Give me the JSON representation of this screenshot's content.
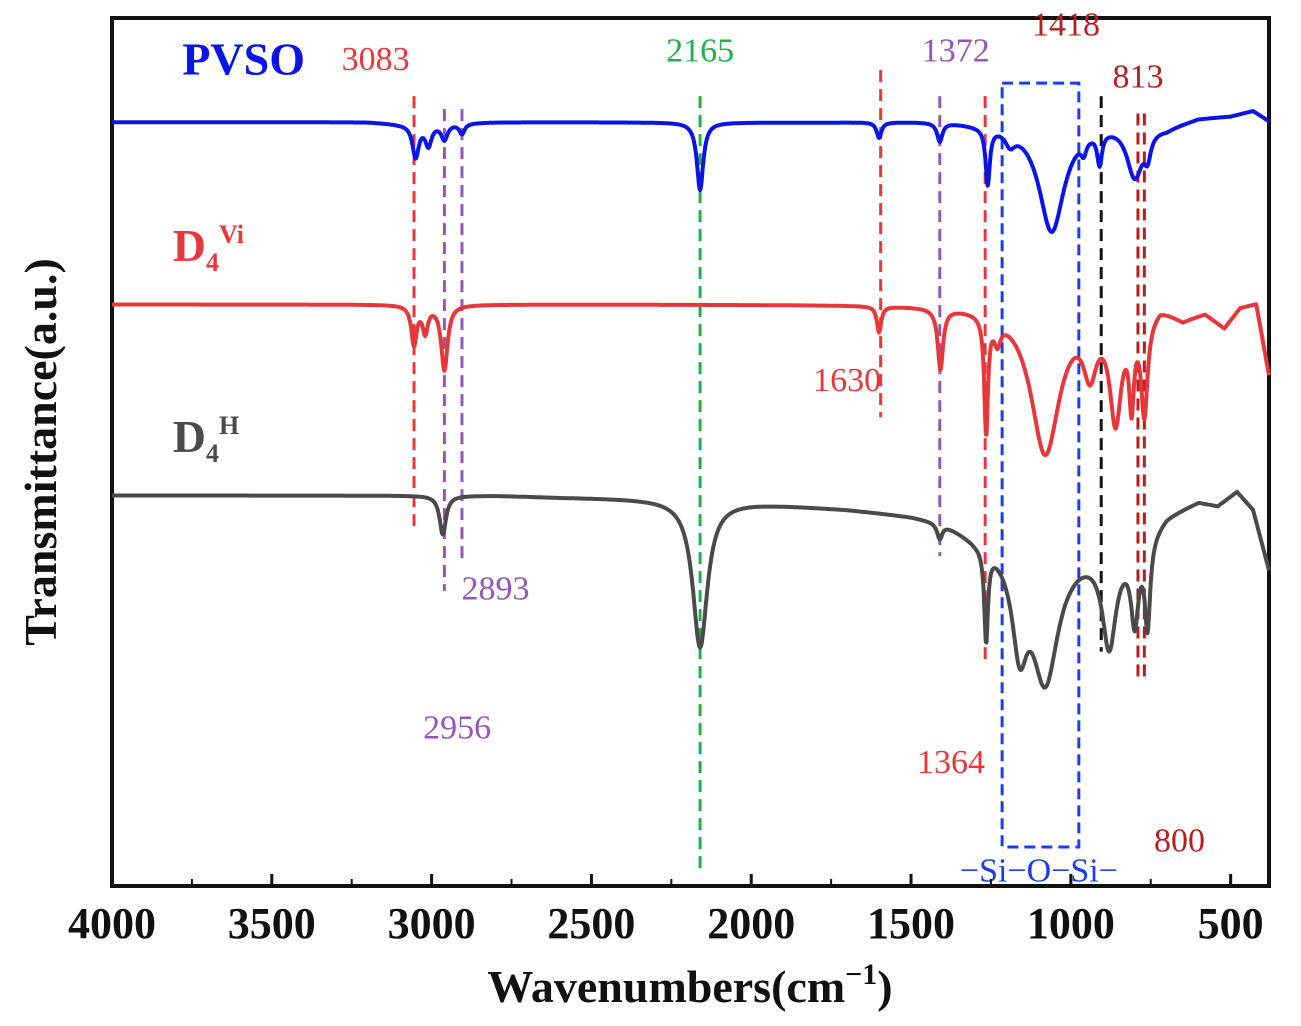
{
  "chart_data": {
    "type": "line",
    "title": "",
    "xlabel_main": "Wavenumbers(cm",
    "xlabel_sup": "−1",
    "xlabel_tail": ")",
    "ylabel": "Transmittance(a.u.)",
    "xlim": [
      4000,
      380
    ],
    "x_reversed": true,
    "xticks": [
      4000,
      3500,
      3000,
      2500,
      2000,
      1500,
      1000,
      500
    ],
    "xtick_labels": [
      "4000",
      "3500",
      "3000",
      "2500",
      "2000",
      "1500",
      "1000",
      "500"
    ],
    "ylim": [
      0,
      100
    ],
    "series": [
      {
        "key": "pvso",
        "name": "PVSO",
        "sup": "",
        "color": "#0a14e6",
        "baseline": 88,
        "wave": [
          [
            4000,
            88
          ],
          [
            3600,
            88
          ],
          [
            3200,
            88
          ],
          [
            3100,
            87.8
          ],
          [
            2800,
            88
          ],
          [
            2400,
            88
          ],
          [
            1800,
            88
          ],
          [
            1400,
            88.2
          ],
          [
            1300,
            88
          ],
          [
            1000,
            88
          ],
          [
            800,
            88.3
          ],
          [
            700,
            87.6
          ],
          [
            600,
            88.6
          ],
          [
            500,
            88.8
          ],
          [
            430,
            89.4
          ],
          [
            380,
            88.2
          ]
        ],
        "peaks": [
          {
            "x": 3050,
            "depth": 3.8,
            "w": 12
          },
          {
            "x": 3010,
            "depth": 2.4,
            "w": 12
          },
          {
            "x": 2960,
            "depth": 1.8,
            "w": 12
          },
          {
            "x": 2905,
            "depth": 1.2,
            "w": 10
          },
          {
            "x": 2160,
            "depth": 7.8,
            "w": 12
          },
          {
            "x": 1600,
            "depth": 1.8,
            "w": 9
          },
          {
            "x": 1410,
            "depth": 2.2,
            "w": 10
          },
          {
            "x": 1260,
            "depth": 6.5,
            "w": 8
          },
          {
            "x": 1190,
            "depth": 1.5,
            "w": 18
          },
          {
            "x": 1060,
            "depth": 12.5,
            "w": 48
          },
          {
            "x": 960,
            "depth": 1.5,
            "w": 10
          },
          {
            "x": 910,
            "depth": 3.6,
            "w": 9
          },
          {
            "x": 800,
            "depth": 6.2,
            "w": 30
          },
          {
            "x": 760,
            "depth": 2.5,
            "w": 12
          }
        ]
      },
      {
        "key": "d4vi",
        "name": "D",
        "sub": "4",
        "sup": "Vi",
        "color": "#e8373a",
        "baseline": 67,
        "wave": [
          [
            4000,
            67
          ],
          [
            3500,
            67
          ],
          [
            3200,
            67
          ],
          [
            2800,
            67
          ],
          [
            2400,
            67
          ],
          [
            2000,
            67
          ],
          [
            1600,
            67
          ],
          [
            1450,
            67
          ],
          [
            1200,
            67
          ],
          [
            1000,
            67
          ],
          [
            760,
            66.5
          ],
          [
            720,
            67.2
          ],
          [
            650,
            65.5
          ],
          [
            580,
            66.2
          ],
          [
            520,
            64.5
          ],
          [
            470,
            66.8
          ],
          [
            420,
            67.2
          ],
          [
            380,
            59
          ]
        ],
        "peaks": [
          {
            "x": 3055,
            "depth": 4.5,
            "w": 10
          },
          {
            "x": 3020,
            "depth": 3,
            "w": 10
          },
          {
            "x": 2960,
            "depth": 7.5,
            "w": 12
          },
          {
            "x": 1600,
            "depth": 3,
            "w": 8
          },
          {
            "x": 1408,
            "depth": 7,
            "w": 10
          },
          {
            "x": 1265,
            "depth": 13.5,
            "w": 7
          },
          {
            "x": 1230,
            "depth": 2.5,
            "w": 12
          },
          {
            "x": 1080,
            "depth": 17,
            "w": 55
          },
          {
            "x": 940,
            "depth": 6,
            "w": 25
          },
          {
            "x": 860,
            "depth": 12,
            "w": 22
          },
          {
            "x": 810,
            "depth": 9,
            "w": 9
          },
          {
            "x": 770,
            "depth": 11,
            "w": 12
          }
        ]
      },
      {
        "key": "d4h",
        "name": "D",
        "sub": "4",
        "sup": "H",
        "color": "#4a4a4a",
        "baseline": 45,
        "wave": [
          [
            4000,
            45
          ],
          [
            3500,
            45
          ],
          [
            3200,
            45
          ],
          [
            3000,
            45
          ],
          [
            2800,
            45
          ],
          [
            2600,
            44.8
          ],
          [
            2400,
            44.7
          ],
          [
            2200,
            44.6
          ],
          [
            2000,
            44.2
          ],
          [
            1700,
            43.5
          ],
          [
            1500,
            42.8
          ],
          [
            1400,
            42.2
          ],
          [
            1300,
            40.5
          ],
          [
            1200,
            39.5
          ],
          [
            1000,
            39
          ],
          [
            800,
            39.5
          ],
          [
            700,
            43
          ],
          [
            600,
            44.5
          ],
          [
            540,
            44
          ],
          [
            480,
            45.6
          ],
          [
            430,
            43.5
          ],
          [
            380,
            36.5
          ]
        ],
        "peaks": [
          {
            "x": 2965,
            "depth": 4.5,
            "w": 12
          },
          {
            "x": 2160,
            "depth": 17,
            "w": 28
          },
          {
            "x": 1410,
            "depth": 1.8,
            "w": 10
          },
          {
            "x": 1265,
            "depth": 10.5,
            "w": 7
          },
          {
            "x": 1160,
            "depth": 10,
            "w": 28
          },
          {
            "x": 1080,
            "depth": 15,
            "w": 50
          },
          {
            "x": 880,
            "depth": 11,
            "w": 26
          },
          {
            "x": 800,
            "depth": 8,
            "w": 14
          },
          {
            "x": 760,
            "depth": 10,
            "w": 10
          }
        ]
      }
    ],
    "reference_lines": [
      {
        "x": 3055,
        "y_top": 91,
        "y_bot": 41,
        "color": "#e8373a",
        "name": "ref-3083"
      },
      {
        "x": 2960,
        "y_top": 89.5,
        "y_bot": 34,
        "color": "#9457b7",
        "name": "ref-2956"
      },
      {
        "x": 2905,
        "y_top": 89.5,
        "y_bot": 37,
        "color": "#9457b7",
        "name": "ref-2893"
      },
      {
        "x": 2160,
        "y_top": 91,
        "y_bot": 1.5,
        "color": "#1fb04c",
        "name": "ref-2165"
      },
      {
        "x": 1595,
        "y_top": 94,
        "y_bot": 54,
        "color": "#e8373a",
        "name": "ref-1630"
      },
      {
        "x": 1410,
        "y_top": 91,
        "y_bot": 38,
        "color": "#9457b7",
        "name": "ref-1372"
      },
      {
        "x": 1268,
        "y_top": 91,
        "y_bot": 26,
        "color": "#e8373a",
        "name": "ref-1364"
      },
      {
        "x": 905,
        "y_top": 91,
        "y_bot": 27,
        "color": "#111111",
        "name": "ref-1418"
      },
      {
        "x": 790,
        "y_top": 89,
        "y_bot": 24,
        "color": "#b51f1f",
        "name": "ref-813"
      },
      {
        "x": 770,
        "y_top": 89,
        "y_bot": 24,
        "color": "#b51f1f",
        "name": "ref-800"
      }
    ],
    "si_box": {
      "x1": 1215,
      "x2": 975,
      "y_top": 92.5,
      "y_bot": 4.5,
      "color": "#1a3ee8"
    },
    "annotations": [
      {
        "text": "3083",
        "x": 3175,
        "y": 94,
        "color": "#e8373a",
        "name": "label-3083"
      },
      {
        "text": "2165",
        "x": 2160,
        "y": 95,
        "color": "#1fb04c",
        "name": "label-2165"
      },
      {
        "text": "1372",
        "x": 1360,
        "y": 95,
        "color": "#9457b7",
        "name": "label-1372"
      },
      {
        "text": "1418",
        "x": 1015,
        "y": 98,
        "color": "#b51f1f",
        "name": "label-1418"
      },
      {
        "text": "813",
        "x": 790,
        "y": 92,
        "color": "#b51f1f",
        "name": "label-813"
      },
      {
        "text": "1630",
        "x": 1700,
        "y": 57,
        "color": "#e8373a",
        "name": "label-1630"
      },
      {
        "text": "2893",
        "x": 2800,
        "y": 33,
        "color": "#9457b7",
        "name": "label-2893"
      },
      {
        "text": "2956",
        "x": 2920,
        "y": 17,
        "color": "#9457b7",
        "name": "label-2956"
      },
      {
        "text": "1364",
        "x": 1375,
        "y": 13,
        "color": "#e8373a",
        "name": "label-1364"
      },
      {
        "text": "800",
        "x": 660,
        "y": 4,
        "color": "#b51f1f",
        "name": "label-800"
      },
      {
        "text": "−Si−O−Si−",
        "x": 1100,
        "y": 0.5,
        "color": "#1a3ee8",
        "name": "label-si-o-si"
      }
    ],
    "series_labels": [
      {
        "key": "pvso",
        "x": 3780,
        "y": 93.5
      },
      {
        "key": "d4vi",
        "x": 3810,
        "y": 72
      },
      {
        "key": "d4h",
        "x": 3810,
        "y": 50
      }
    ]
  }
}
